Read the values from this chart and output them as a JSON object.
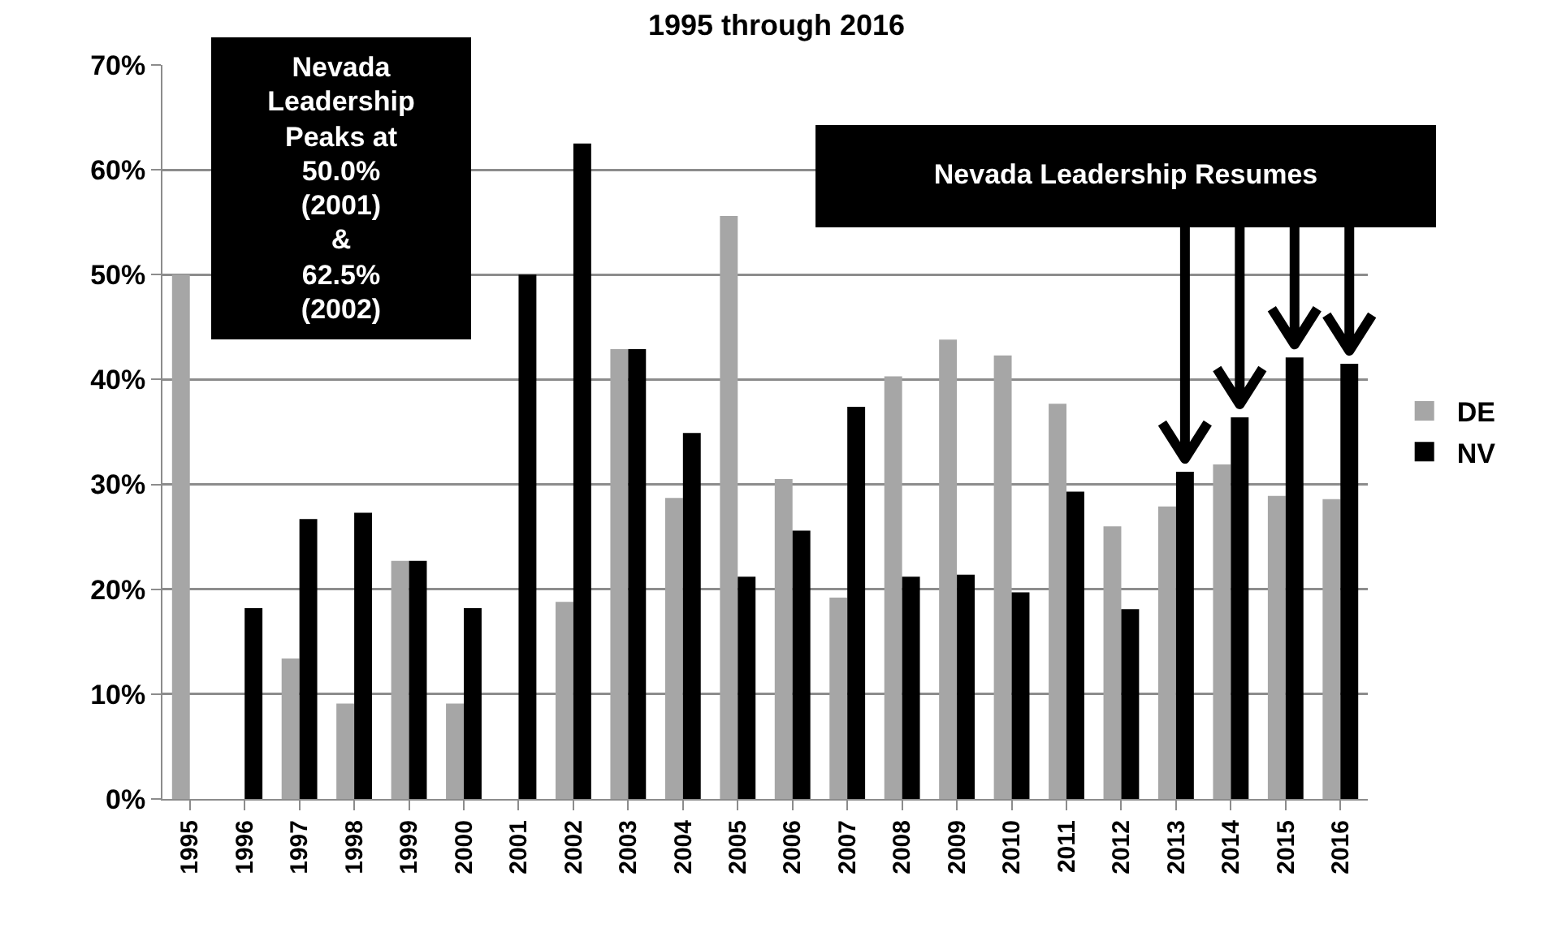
{
  "chart_data": {
    "type": "bar",
    "title": "1995 through 2016",
    "categories": [
      "1995",
      "1996",
      "1997",
      "1998",
      "1999",
      "2000",
      "2001",
      "2002",
      "2003",
      "2004",
      "2005",
      "2006",
      "2007",
      "2008",
      "2009",
      "2010",
      "2011",
      "2012",
      "2013",
      "2014",
      "2015",
      "2016"
    ],
    "series": [
      {
        "name": "DE",
        "color": "#a6a6a6",
        "values": [
          50,
          0,
          13.4,
          9.1,
          22.7,
          9.1,
          0,
          18.8,
          42.9,
          28.7,
          55.6,
          30.5,
          19.2,
          40.3,
          43.8,
          42.3,
          37.7,
          26.0,
          27.9,
          31.9,
          28.9,
          28.6
        ]
      },
      {
        "name": "NV",
        "color": "#000000",
        "values": [
          0,
          18.2,
          26.7,
          27.3,
          22.7,
          18.2,
          50.0,
          62.5,
          42.9,
          34.9,
          21.2,
          25.6,
          37.4,
          21.2,
          21.4,
          19.7,
          29.3,
          18.1,
          31.2,
          36.4,
          42.1,
          41.5
        ]
      }
    ],
    "ylim": [
      0,
      70
    ],
    "yticks": [
      {
        "value": 0,
        "label": "0%"
      },
      {
        "value": 10,
        "label": "10%"
      },
      {
        "value": 20,
        "label": "20%"
      },
      {
        "value": 30,
        "label": "30%"
      },
      {
        "value": 40,
        "label": "40%"
      },
      {
        "value": 50,
        "label": "50%"
      },
      {
        "value": 60,
        "label": "60%"
      },
      {
        "value": 70,
        "label": "70%"
      }
    ],
    "grid": "y",
    "legend": "right",
    "annotations": [
      "Nevada\nLeadership\nPeaks at\n50.0%\n(2001)\n&\n62.5%\n(2002)",
      "Nevada Leadership Resumes"
    ]
  }
}
